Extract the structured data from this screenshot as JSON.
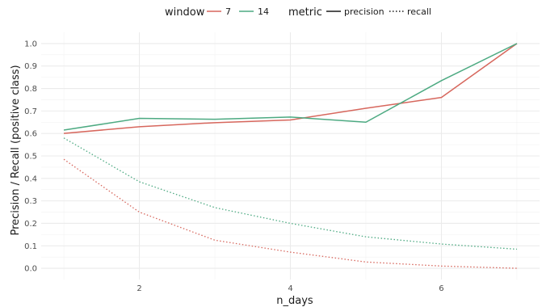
{
  "chart_data": {
    "type": "line",
    "xlabel": "n_days",
    "ylabel": "Precision / Recall (positive class)",
    "xlim": [
      0.7,
      7.3
    ],
    "ylim": [
      -0.05,
      1.05
    ],
    "x_ticks": [
      2,
      4,
      6
    ],
    "y_ticks": [
      0.0,
      0.1,
      0.2,
      0.3,
      0.4,
      0.5,
      0.6,
      0.7,
      0.8,
      0.9,
      1.0
    ],
    "grid": true,
    "legend_position": "top",
    "legend": {
      "color_title": "window",
      "color_items": [
        {
          "label": "7",
          "color": "#D7675D"
        },
        {
          "label": "14",
          "color": "#4DAA82"
        }
      ],
      "linetype_title": "metric",
      "linetype_items": [
        {
          "label": "precision",
          "dash": "solid"
        },
        {
          "label": "recall",
          "dash": "dotted"
        }
      ]
    },
    "series": [
      {
        "window": "7",
        "metric": "precision",
        "color": "#D7675D",
        "dash": "solid",
        "x": [
          1,
          2,
          3,
          4,
          5,
          6,
          7
        ],
        "values": [
          0.6,
          0.63,
          0.648,
          0.66,
          0.712,
          0.76,
          1.0
        ]
      },
      {
        "window": "14",
        "metric": "precision",
        "color": "#4DAA82",
        "dash": "solid",
        "x": [
          1,
          2,
          3,
          4,
          5,
          6,
          7
        ],
        "values": [
          0.615,
          0.667,
          0.663,
          0.673,
          0.65,
          0.835,
          1.0
        ]
      },
      {
        "window": "7",
        "metric": "recall",
        "color": "#D7675D",
        "dash": "dotted",
        "x": [
          1,
          2,
          3,
          4,
          5,
          6,
          7
        ],
        "values": [
          0.485,
          0.25,
          0.125,
          0.072,
          0.028,
          0.01,
          0.0
        ]
      },
      {
        "window": "14",
        "metric": "recall",
        "color": "#4DAA82",
        "dash": "dotted",
        "x": [
          1,
          2,
          3,
          4,
          5,
          6,
          7
        ],
        "values": [
          0.58,
          0.385,
          0.27,
          0.2,
          0.14,
          0.108,
          0.085
        ]
      }
    ]
  }
}
